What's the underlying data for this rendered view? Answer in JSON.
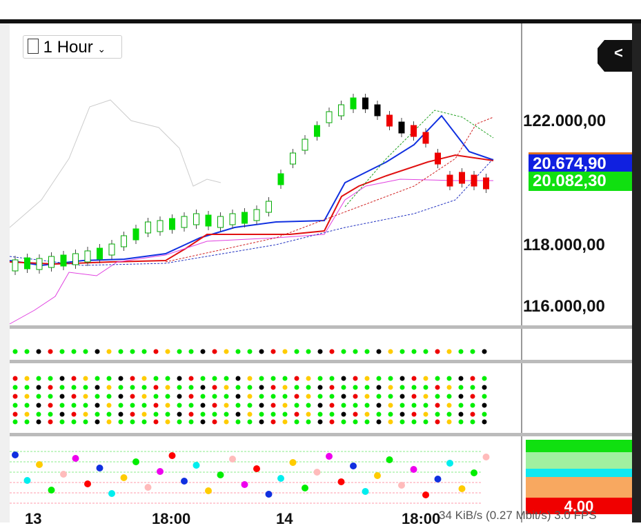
{
  "toolbar": {
    "timeframe": "1 Hour",
    "collapse": "<"
  },
  "price_axis": {
    "labels": [
      "122.000,00",
      "118.000,00",
      "116.000,00"
    ]
  },
  "price_badges": [
    "20.674,90",
    "20.082,30"
  ],
  "time_axis": {
    "labels": [
      "13",
      "18:00",
      "14",
      "18:00"
    ]
  },
  "indicator_badges": [
    "4.00"
  ],
  "status": "34 KiB/s (0.27 Mbit/s) 3.0 FPS"
}
